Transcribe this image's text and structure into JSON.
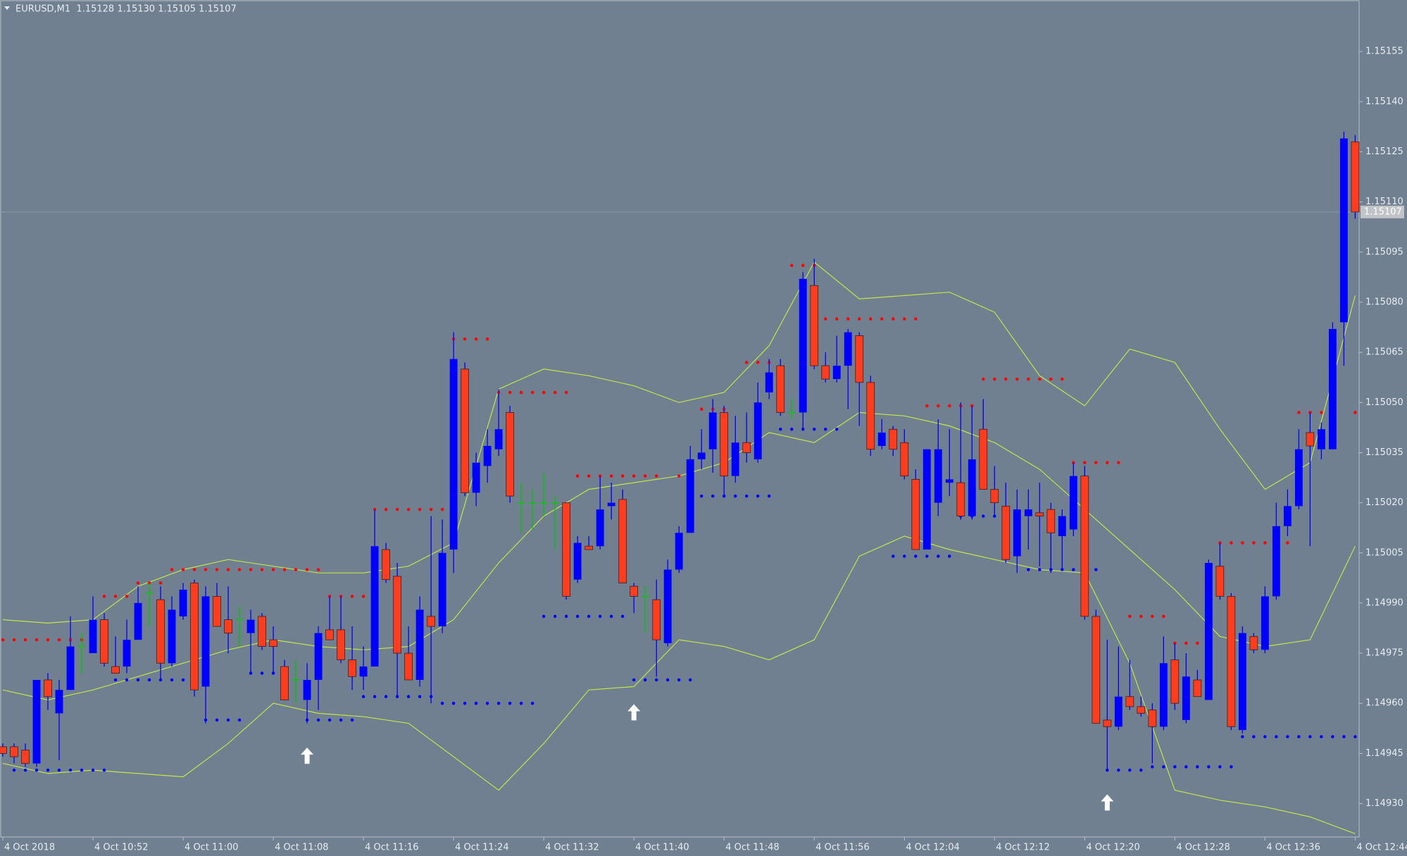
{
  "chart_data": {
    "type": "candlestick",
    "header": "EURUSD,M1  1.15128 1.15130 1.15105 1.15107",
    "background": "#708090",
    "up_color": "#0000ff",
    "down_color": "#ff3c1e",
    "doji_color": "#00c800",
    "band_color": "#c3e34a",
    "resistance_color": "#ff0000",
    "support_color": "#0000ff",
    "arrow_color": "#ffffff",
    "categories": [
      "4 Oct 2018",
      null,
      null,
      null,
      null,
      null,
      null,
      null,
      "4 Oct 10:52",
      null,
      null,
      null,
      null,
      null,
      null,
      null,
      "4 Oct 11:00",
      null,
      null,
      null,
      null,
      null,
      null,
      null,
      "4 Oct 11:08",
      null,
      null,
      null,
      null,
      null,
      null,
      null,
      "4 Oct 11:16",
      null,
      null,
      null,
      null,
      null,
      null,
      null,
      "4 Oct 11:24",
      null,
      null,
      null,
      null,
      null,
      null,
      null,
      "4 Oct 11:32",
      null,
      null,
      null,
      null,
      null,
      null,
      null,
      "4 Oct 11:40",
      null,
      null,
      null,
      null,
      null,
      null,
      null,
      "4 Oct 11:48",
      null,
      null,
      null,
      null,
      null,
      null,
      null,
      "4 Oct 11:56",
      null,
      null,
      null,
      null,
      null,
      null,
      null,
      "4 Oct 12:04",
      null,
      null,
      null,
      null,
      null,
      null,
      null,
      "4 Oct 12:12",
      null,
      null,
      null,
      null,
      null,
      null,
      null,
      "4 Oct 12:20",
      null,
      null,
      null,
      null,
      null,
      null,
      null,
      "4 Oct 12:28",
      null,
      null,
      null,
      null,
      null,
      null,
      null,
      "4 Oct 12:36",
      null,
      null,
      null,
      null,
      null,
      null,
      null,
      "4 Oct 12:44"
    ],
    "ohlc": [
      [
        1.14947,
        1.14948,
        1.14944,
        1.14945
      ],
      [
        1.14947,
        1.14948,
        1.14942,
        1.14944
      ],
      [
        1.14946,
        1.14948,
        1.14941,
        1.14942
      ],
      [
        1.14942,
        1.14967,
        1.14941,
        1.14967
      ],
      [
        1.14967,
        1.14969,
        1.14958,
        1.14962
      ],
      [
        1.14957,
        1.14967,
        1.14943,
        1.14964
      ],
      [
        1.14964,
        1.14986,
        1.14964,
        1.14977
      ],
      [
        1.14977,
        1.14981,
        1.14969,
        1.14977
      ],
      [
        1.14975,
        1.14992,
        1.14975,
        1.14985
      ],
      [
        1.14985,
        1.14987,
        1.14971,
        1.14972
      ],
      [
        1.14971,
        1.1498,
        1.14969,
        1.14969
      ],
      [
        1.14971,
        1.14985,
        1.14969,
        1.14979
      ],
      [
        1.14979,
        1.14995,
        1.14979,
        1.1499
      ],
      [
        1.14993,
        1.14996,
        1.14983,
        1.14993
      ],
      [
        1.14991,
        1.14995,
        1.14967,
        1.14972
      ],
      [
        1.14972,
        1.14992,
        1.14971,
        1.14988
      ],
      [
        1.14986,
        1.14996,
        1.14985,
        1.14994
      ],
      [
        1.14996,
        1.14997,
        1.14962,
        1.14964
      ],
      [
        1.14965,
        1.14995,
        1.14954,
        1.14992
      ],
      [
        1.14992,
        1.14996,
        1.14983,
        1.14983
      ],
      [
        1.14985,
        1.14995,
        1.14975,
        1.14981
      ],
      [
        1.14985,
        1.14989,
        1.14977,
        1.14985
      ],
      [
        1.14981,
        1.14988,
        1.14969,
        1.14985
      ],
      [
        1.14986,
        1.14987,
        1.14976,
        1.14977
      ],
      [
        1.14979,
        1.14983,
        1.14969,
        1.14977
      ],
      [
        1.14971,
        1.14973,
        1.14961,
        1.14961
      ],
      [
        1.14967,
        1.14973,
        1.1496,
        1.14967
      ],
      [
        1.14961,
        1.14972,
        1.14954,
        1.14967
      ],
      [
        1.14967,
        1.14983,
        1.14958,
        1.14981
      ],
      [
        1.14982,
        1.14992,
        1.14979,
        1.14979
      ],
      [
        1.14982,
        1.14992,
        1.14972,
        1.14973
      ],
      [
        1.14973,
        1.14983,
        1.14964,
        1.14968
      ],
      [
        1.14968,
        1.14977,
        1.14964,
        1.14971
      ],
      [
        1.14971,
        1.15018,
        1.14971,
        1.15007
      ],
      [
        1.15006,
        1.15008,
        1.14996,
        1.14997
      ],
      [
        1.14998,
        1.15002,
        1.14962,
        1.14975
      ],
      [
        1.14975,
        1.14983,
        1.14967,
        1.14967
      ],
      [
        1.14967,
        1.14992,
        1.14965,
        1.14988
      ],
      [
        1.14986,
        1.15016,
        1.1496,
        1.14983
      ],
      [
        1.14983,
        1.15015,
        1.14981,
        1.15005
      ],
      [
        1.15006,
        1.15071,
        1.14999,
        1.15063
      ],
      [
        1.1506,
        1.15062,
        1.15022,
        1.15023
      ],
      [
        1.15023,
        1.15035,
        1.15019,
        1.15032
      ],
      [
        1.15031,
        1.15042,
        1.15026,
        1.15037
      ],
      [
        1.15036,
        1.15054,
        1.15034,
        1.15042
      ],
      [
        1.15047,
        1.15049,
        1.1502,
        1.15022
      ],
      [
        1.1502,
        1.15026,
        1.15011,
        1.1502
      ],
      [
        1.1502,
        1.15024,
        1.15012,
        1.1502
      ],
      [
        1.1502,
        1.15029,
        1.15016,
        1.1502
      ],
      [
        1.1502,
        1.15022,
        1.15006,
        1.1502
      ],
      [
        1.1502,
        1.1502,
        1.14991,
        1.14992
      ],
      [
        1.14997,
        1.1501,
        1.14996,
        1.15008
      ],
      [
        1.15007,
        1.1501,
        1.15006,
        1.15006
      ],
      [
        1.15007,
        1.15028,
        1.15006,
        1.15018
      ],
      [
        1.15019,
        1.15026,
        1.15015,
        1.1502
      ],
      [
        1.15021,
        1.15024,
        1.14996,
        1.14996
      ],
      [
        1.14995,
        1.14996,
        1.14987,
        1.14992
      ],
      [
        1.14992,
        1.14995,
        1.14981,
        1.14992
      ],
      [
        1.14991,
        1.14997,
        1.14968,
        1.14979
      ],
      [
        1.14978,
        1.15003,
        1.14977,
        1.15
      ],
      [
        1.15,
        1.15013,
        1.14999,
        1.15011
      ],
      [
        1.15011,
        1.15037,
        1.15011,
        1.15033
      ],
      [
        1.15033,
        1.15042,
        1.1503,
        1.15035
      ],
      [
        1.15036,
        1.15051,
        1.15029,
        1.15047
      ],
      [
        1.15047,
        1.15049,
        1.15022,
        1.15028
      ],
      [
        1.15028,
        1.15046,
        1.15026,
        1.15038
      ],
      [
        1.15038,
        1.15047,
        1.15032,
        1.15035
      ],
      [
        1.15033,
        1.15056,
        1.15032,
        1.1505
      ],
      [
        1.15053,
        1.15063,
        1.15051,
        1.15059
      ],
      [
        1.15061,
        1.15063,
        1.15046,
        1.15047
      ],
      [
        1.15047,
        1.15051,
        1.15045,
        1.15047
      ],
      [
        1.15047,
        1.15089,
        1.15042,
        1.15087
      ],
      [
        1.15085,
        1.15093,
        1.1506,
        1.15061
      ],
      [
        1.15061,
        1.15065,
        1.15056,
        1.15057
      ],
      [
        1.15057,
        1.1507,
        1.15056,
        1.15061
      ],
      [
        1.15061,
        1.15072,
        1.15048,
        1.15071
      ],
      [
        1.1507,
        1.15071,
        1.15043,
        1.15056
      ],
      [
        1.15056,
        1.15058,
        1.15034,
        1.15036
      ],
      [
        1.15037,
        1.15045,
        1.15036,
        1.15041
      ],
      [
        1.15042,
        1.15043,
        1.15034,
        1.15036
      ],
      [
        1.15038,
        1.15042,
        1.15027,
        1.15028
      ],
      [
        1.15027,
        1.1503,
        1.15006,
        1.15006
      ],
      [
        1.15006,
        1.15036,
        1.15006,
        1.15036
      ],
      [
        1.1502,
        1.15045,
        1.15016,
        1.15036
      ],
      [
        1.15026,
        1.15042,
        1.15022,
        1.15027
      ],
      [
        1.15026,
        1.1505,
        1.15015,
        1.15016
      ],
      [
        1.15016,
        1.15049,
        1.15015,
        1.15033
      ],
      [
        1.15042,
        1.15051,
        1.15024,
        1.15024
      ],
      [
        1.15024,
        1.15031,
        1.15016,
        1.1502
      ],
      [
        1.15019,
        1.15026,
        1.15002,
        1.15003
      ],
      [
        1.15004,
        1.15024,
        1.14999,
        1.15018
      ],
      [
        1.15016,
        1.15024,
        1.15006,
        1.15018
      ],
      [
        1.15017,
        1.15026,
        1.15001,
        1.15016
      ],
      [
        1.15018,
        1.1502,
        1.14999,
        1.15011
      ],
      [
        1.1501,
        1.15018,
        1.15,
        1.15016
      ],
      [
        1.15012,
        1.15032,
        1.1501,
        1.15028
      ],
      [
        1.15028,
        1.15031,
        1.14985,
        1.14986
      ],
      [
        1.14986,
        1.14988,
        1.14954,
        1.14954
      ],
      [
        1.14955,
        1.14979,
        1.1494,
        1.14953
      ],
      [
        1.14953,
        1.14977,
        1.14952,
        1.14962
      ],
      [
        1.14962,
        1.14973,
        1.14958,
        1.14959
      ],
      [
        1.14959,
        1.14962,
        1.14956,
        1.14957
      ],
      [
        1.14958,
        1.1496,
        1.14942,
        1.14953
      ],
      [
        1.14953,
        1.1498,
        1.14952,
        1.14972
      ],
      [
        1.14973,
        1.14978,
        1.14958,
        1.1496
      ],
      [
        1.14955,
        1.14975,
        1.14954,
        1.14968
      ],
      [
        1.14967,
        1.1497,
        1.14962,
        1.14962
      ],
      [
        1.14961,
        1.15003,
        1.14961,
        1.15002
      ],
      [
        1.15001,
        1.15008,
        1.14991,
        1.14992
      ],
      [
        1.14992,
        1.14993,
        1.14952,
        1.14953
      ],
      [
        1.14952,
        1.14983,
        1.14951,
        1.14981
      ],
      [
        1.1498,
        1.14981,
        1.14975,
        1.14976
      ],
      [
        1.14976,
        1.14995,
        1.14975,
        1.14992
      ],
      [
        1.14992,
        1.1502,
        1.14991,
        1.15013
      ],
      [
        1.15013,
        1.15024,
        1.1501,
        1.15019
      ],
      [
        1.15019,
        1.15042,
        1.15018,
        1.15036
      ],
      [
        1.15041,
        1.15047,
        1.15007,
        1.15037
      ],
      [
        1.15036,
        1.15044,
        1.15033,
        1.15042
      ],
      [
        1.15036,
        1.15074,
        1.15036,
        1.15072
      ],
      [
        1.15074,
        1.15131,
        1.15061,
        1.15129
      ],
      [
        1.15128,
        1.1513,
        1.15105,
        1.15107
      ]
    ],
    "band_x": [
      0,
      4,
      8,
      12,
      16,
      20,
      24,
      28,
      32,
      36,
      40,
      44,
      48,
      52,
      56,
      60,
      64,
      68,
      72,
      76,
      80,
      84,
      88,
      92,
      96,
      100,
      104,
      108,
      112,
      116,
      120
    ],
    "band_upper": [
      1.14985,
      1.14984,
      1.14985,
      1.14995,
      1.15,
      1.15003,
      1.15001,
      1.14999,
      1.14999,
      1.15001,
      1.15008,
      1.15054,
      1.1506,
      1.15058,
      1.15055,
      1.1505,
      1.15053,
      1.15067,
      1.15092,
      1.15081,
      1.15082,
      1.15083,
      1.15077,
      1.15058,
      1.15049,
      1.15066,
      1.15062,
      1.15042,
      1.15024,
      1.15032,
      1.15082
    ],
    "band_middle": [
      1.14964,
      1.14961,
      1.14964,
      1.14968,
      1.14972,
      1.14976,
      1.14979,
      1.14977,
      1.14976,
      1.14977,
      1.14985,
      1.15002,
      1.15016,
      1.15024,
      1.15026,
      1.15028,
      1.15032,
      1.15041,
      1.15038,
      1.15047,
      1.15046,
      1.15043,
      1.15038,
      1.1503,
      1.15018,
      1.15006,
      1.14994,
      1.1498,
      1.14977,
      1.14979,
      1.15007
    ],
    "band_lower": [
      1.14942,
      1.14939,
      1.1494,
      1.14939,
      1.14938,
      1.14948,
      1.1496,
      1.14957,
      1.14956,
      1.14954,
      1.14944,
      1.14934,
      1.14948,
      1.14964,
      1.14965,
      1.14979,
      1.14977,
      1.14973,
      1.14979,
      1.15004,
      1.1501,
      1.15006,
      1.15003,
      1.15,
      1.14999,
      1.14972,
      1.14934,
      1.14931,
      1.14929,
      1.14926,
      1.14921
    ],
    "resistance": [
      {
        "from": 0,
        "to": 7,
        "value": 1.14979
      },
      {
        "from": 9,
        "to": 11,
        "value": 1.14992
      },
      {
        "from": 12,
        "to": 14,
        "value": 1.14996
      },
      {
        "from": 15,
        "to": 28,
        "value": 1.15
      },
      {
        "from": 29,
        "to": 32,
        "value": 1.14992
      },
      {
        "from": 33,
        "to": 39,
        "value": 1.15018
      },
      {
        "from": 40,
        "to": 43,
        "value": 1.15069
      },
      {
        "from": 44,
        "to": 50,
        "value": 1.15053
      },
      {
        "from": 51,
        "to": 58,
        "value": 1.15028
      },
      {
        "from": 60,
        "to": 61,
        "value": 1.15028
      },
      {
        "from": 62,
        "to": 64,
        "value": 1.15048
      },
      {
        "from": 66,
        "to": 68,
        "value": 1.15062
      },
      {
        "from": 70,
        "to": 72,
        "value": 1.15091
      },
      {
        "from": 73,
        "to": 81,
        "value": 1.15075
      },
      {
        "from": 82,
        "to": 86,
        "value": 1.15049
      },
      {
        "from": 87,
        "to": 94,
        "value": 1.15057
      },
      {
        "from": 95,
        "to": 99,
        "value": 1.15032
      },
      {
        "from": 100,
        "to": 103,
        "value": 1.14986
      },
      {
        "from": 104,
        "to": 106,
        "value": 1.14978
      },
      {
        "from": 108,
        "to": 114,
        "value": 1.15008
      },
      {
        "from": 115,
        "to": 117,
        "value": 1.15047
      },
      {
        "from": 120,
        "to": 120,
        "value": 1.15047
      }
    ],
    "support": [
      {
        "from": 1,
        "to": 9,
        "value": 1.1494
      },
      {
        "from": 10,
        "to": 16,
        "value": 1.14967
      },
      {
        "from": 18,
        "to": 21,
        "value": 1.14955
      },
      {
        "from": 22,
        "to": 24,
        "value": 1.14969
      },
      {
        "from": 27,
        "to": 31,
        "value": 1.14955
      },
      {
        "from": 32,
        "to": 38,
        "value": 1.14962
      },
      {
        "from": 39,
        "to": 47,
        "value": 1.1496
      },
      {
        "from": 48,
        "to": 55,
        "value": 1.14986
      },
      {
        "from": 56,
        "to": 61,
        "value": 1.14967
      },
      {
        "from": 62,
        "to": 68,
        "value": 1.15022
      },
      {
        "from": 69,
        "to": 74,
        "value": 1.15042
      },
      {
        "from": 79,
        "to": 84,
        "value": 1.15004
      },
      {
        "from": 85,
        "to": 89,
        "value": 1.15016
      },
      {
        "from": 91,
        "to": 97,
        "value": 1.15
      },
      {
        "from": 98,
        "to": 101,
        "value": 1.1494
      },
      {
        "from": 102,
        "to": 109,
        "value": 1.14941
      },
      {
        "from": 110,
        "to": 120,
        "value": 1.1495
      }
    ],
    "arrows": [
      {
        "x": 27,
        "value": 1.14944
      },
      {
        "x": 56,
        "value": 1.14957
      },
      {
        "x": 98,
        "value": 1.1493
      }
    ],
    "last_price": {
      "value": 1.15107,
      "label": "1.15107"
    },
    "xlim": [
      -0.25,
      120.35
    ],
    "ylim": [
      1.1492,
      1.1517
    ],
    "yticks": [
      {
        "value": 1.1493,
        "label": "1.14930"
      },
      1.14945,
      {
        "value": 1.1496,
        "label": "1.14960"
      },
      1.14975,
      {
        "value": 1.1499,
        "label": "1.14990"
      },
      1.15005,
      {
        "value": 1.1502,
        "label": "1.15020"
      },
      1.15035,
      {
        "value": 1.1505,
        "label": "1.15050"
      },
      1.15065,
      {
        "value": 1.1508,
        "label": "1.15080"
      },
      1.15095,
      {
        "value": 1.1511,
        "label": "1.15110"
      },
      1.15125,
      {
        "value": 1.1514,
        "label": "1.15140"
      },
      1.15155
    ]
  }
}
